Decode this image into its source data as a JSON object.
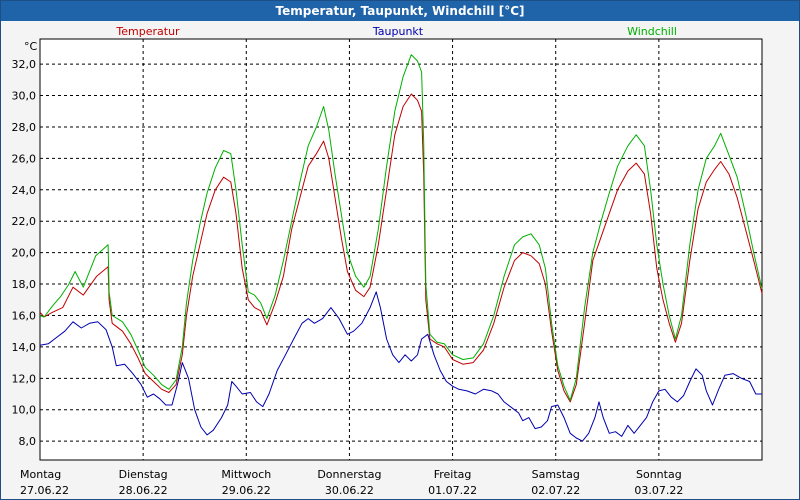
{
  "window": {
    "title": "Temperatur, Taupunkt, Windchill [°C]"
  },
  "chart_data": {
    "type": "line",
    "unit": "°C",
    "ylim": [
      6.8,
      33.6
    ],
    "yticks": [
      "8,0",
      "10,0",
      "12,0",
      "14,0",
      "16,0",
      "18,0",
      "20,0",
      "22,0",
      "24,0",
      "26,0",
      "28,0",
      "30,0",
      "32,0"
    ],
    "ytick_values": [
      8,
      10,
      12,
      14,
      16,
      18,
      20,
      22,
      24,
      26,
      28,
      30,
      32
    ],
    "xlim": [
      0,
      7
    ],
    "days": [
      {
        "weekday": "Montag",
        "date": "27.06.22"
      },
      {
        "weekday": "Dienstag",
        "date": "28.06.22"
      },
      {
        "weekday": "Mittwoch",
        "date": "29.06.22"
      },
      {
        "weekday": "Donnerstag",
        "date": "30.06.22"
      },
      {
        "weekday": "Freitag",
        "date": "01.07.22"
      },
      {
        "weekday": "Samstag",
        "date": "02.07.22"
      },
      {
        "weekday": "Sonntag",
        "date": "03.07.22"
      }
    ],
    "grid": true,
    "series": [
      {
        "name": "Temperatur",
        "color": "#c00000",
        "points": [
          [
            0,
            16.2
          ],
          [
            0.04,
            15.9
          ],
          [
            0.12,
            16.2
          ],
          [
            0.22,
            16.5
          ],
          [
            0.32,
            17.8
          ],
          [
            0.42,
            17.3
          ],
          [
            0.55,
            18.5
          ],
          [
            0.66,
            19.1
          ],
          [
            0.67,
            17.0
          ],
          [
            0.7,
            15.5
          ],
          [
            0.8,
            15.0
          ],
          [
            0.88,
            14.2
          ],
          [
            0.95,
            13.3
          ],
          [
            1.02,
            12.3
          ],
          [
            1.1,
            11.8
          ],
          [
            1.18,
            11.3
          ],
          [
            1.25,
            11.1
          ],
          [
            1.32,
            11.6
          ],
          [
            1.38,
            13.5
          ],
          [
            1.42,
            16.0
          ],
          [
            1.48,
            18.5
          ],
          [
            1.55,
            20.5
          ],
          [
            1.62,
            22.5
          ],
          [
            1.7,
            24.0
          ],
          [
            1.78,
            24.8
          ],
          [
            1.85,
            24.5
          ],
          [
            1.9,
            22.5
          ],
          [
            1.96,
            19.0
          ],
          [
            2.02,
            17.0
          ],
          [
            2.08,
            16.5
          ],
          [
            2.14,
            16.3
          ],
          [
            2.2,
            15.4
          ],
          [
            2.28,
            16.8
          ],
          [
            2.36,
            18.5
          ],
          [
            2.44,
            21.5
          ],
          [
            2.52,
            23.5
          ],
          [
            2.6,
            25.5
          ],
          [
            2.68,
            26.3
          ],
          [
            2.75,
            27.1
          ],
          [
            2.8,
            26.0
          ],
          [
            2.86,
            23.5
          ],
          [
            2.92,
            21.0
          ],
          [
            2.98,
            18.8
          ],
          [
            3.06,
            17.6
          ],
          [
            3.14,
            17.2
          ],
          [
            3.2,
            17.8
          ],
          [
            3.28,
            20.5
          ],
          [
            3.36,
            24.0
          ],
          [
            3.44,
            27.5
          ],
          [
            3.52,
            29.3
          ],
          [
            3.6,
            30.1
          ],
          [
            3.66,
            29.7
          ],
          [
            3.7,
            29.0
          ],
          [
            3.72,
            25.0
          ],
          [
            3.74,
            17.0
          ],
          [
            3.78,
            14.5
          ],
          [
            3.85,
            14.2
          ],
          [
            3.92,
            14.0
          ],
          [
            4.0,
            13.2
          ],
          [
            4.1,
            12.9
          ],
          [
            4.2,
            13.0
          ],
          [
            4.3,
            13.8
          ],
          [
            4.4,
            15.5
          ],
          [
            4.5,
            17.8
          ],
          [
            4.6,
            19.5
          ],
          [
            4.68,
            20.0
          ],
          [
            4.76,
            19.8
          ],
          [
            4.84,
            19.3
          ],
          [
            4.9,
            18.0
          ],
          [
            4.96,
            15.0
          ],
          [
            5.02,
            12.5
          ],
          [
            5.08,
            11.2
          ],
          [
            5.14,
            10.5
          ],
          [
            5.2,
            11.6
          ],
          [
            5.28,
            15.5
          ],
          [
            5.36,
            19.5
          ],
          [
            5.44,
            21.0
          ],
          [
            5.52,
            22.5
          ],
          [
            5.6,
            24.0
          ],
          [
            5.7,
            25.2
          ],
          [
            5.78,
            25.7
          ],
          [
            5.86,
            25.0
          ],
          [
            5.92,
            22.5
          ],
          [
            5.98,
            19.0
          ],
          [
            6.04,
            17.0
          ],
          [
            6.1,
            15.5
          ],
          [
            6.16,
            14.3
          ],
          [
            6.22,
            15.5
          ],
          [
            6.3,
            19.5
          ],
          [
            6.38,
            22.8
          ],
          [
            6.46,
            24.5
          ],
          [
            6.54,
            25.3
          ],
          [
            6.6,
            25.8
          ],
          [
            6.68,
            25.0
          ],
          [
            6.76,
            23.5
          ],
          [
            6.84,
            21.5
          ],
          [
            6.92,
            19.5
          ],
          [
            7.0,
            17.4
          ]
        ]
      },
      {
        "name": "Taupunkt",
        "color": "#0000b0",
        "points": [
          [
            0,
            14.1
          ],
          [
            0.08,
            14.2
          ],
          [
            0.16,
            14.6
          ],
          [
            0.24,
            15.0
          ],
          [
            0.32,
            15.6
          ],
          [
            0.4,
            15.2
          ],
          [
            0.48,
            15.5
          ],
          [
            0.56,
            15.6
          ],
          [
            0.64,
            15.1
          ],
          [
            0.7,
            14.0
          ],
          [
            0.74,
            12.8
          ],
          [
            0.82,
            12.9
          ],
          [
            0.9,
            12.3
          ],
          [
            0.98,
            11.6
          ],
          [
            1.04,
            10.8
          ],
          [
            1.1,
            11.0
          ],
          [
            1.16,
            10.7
          ],
          [
            1.22,
            10.3
          ],
          [
            1.28,
            10.3
          ],
          [
            1.34,
            11.8
          ],
          [
            1.38,
            13.0
          ],
          [
            1.44,
            12.0
          ],
          [
            1.5,
            10.0
          ],
          [
            1.56,
            8.9
          ],
          [
            1.62,
            8.4
          ],
          [
            1.68,
            8.7
          ],
          [
            1.76,
            9.5
          ],
          [
            1.82,
            10.3
          ],
          [
            1.86,
            11.8
          ],
          [
            1.9,
            11.5
          ],
          [
            1.96,
            11.0
          ],
          [
            2.04,
            11.1
          ],
          [
            2.1,
            10.5
          ],
          [
            2.16,
            10.2
          ],
          [
            2.22,
            11.0
          ],
          [
            2.3,
            12.5
          ],
          [
            2.38,
            13.5
          ],
          [
            2.46,
            14.5
          ],
          [
            2.54,
            15.5
          ],
          [
            2.6,
            15.8
          ],
          [
            2.66,
            15.5
          ],
          [
            2.74,
            15.8
          ],
          [
            2.82,
            16.5
          ],
          [
            2.9,
            15.8
          ],
          [
            2.98,
            14.8
          ],
          [
            3.04,
            15.0
          ],
          [
            3.12,
            15.5
          ],
          [
            3.2,
            16.5
          ],
          [
            3.26,
            17.5
          ],
          [
            3.3,
            16.5
          ],
          [
            3.36,
            14.5
          ],
          [
            3.42,
            13.5
          ],
          [
            3.48,
            13.0
          ],
          [
            3.54,
            13.5
          ],
          [
            3.6,
            13.1
          ],
          [
            3.66,
            13.5
          ],
          [
            3.7,
            14.5
          ],
          [
            3.76,
            14.8
          ],
          [
            3.82,
            13.5
          ],
          [
            3.88,
            12.5
          ],
          [
            3.94,
            11.8
          ],
          [
            4.0,
            11.5
          ],
          [
            4.06,
            11.3
          ],
          [
            4.14,
            11.2
          ],
          [
            4.22,
            11.0
          ],
          [
            4.3,
            11.3
          ],
          [
            4.38,
            11.2
          ],
          [
            4.44,
            11.0
          ],
          [
            4.5,
            10.5
          ],
          [
            4.58,
            10.1
          ],
          [
            4.64,
            9.8
          ],
          [
            4.68,
            9.3
          ],
          [
            4.74,
            9.5
          ],
          [
            4.8,
            8.8
          ],
          [
            4.86,
            8.9
          ],
          [
            4.92,
            9.3
          ],
          [
            4.96,
            10.2
          ],
          [
            5.02,
            10.3
          ],
          [
            5.08,
            9.5
          ],
          [
            5.14,
            8.5
          ],
          [
            5.2,
            8.2
          ],
          [
            5.26,
            8.0
          ],
          [
            5.32,
            8.5
          ],
          [
            5.38,
            9.5
          ],
          [
            5.42,
            10.5
          ],
          [
            5.46,
            9.5
          ],
          [
            5.52,
            8.5
          ],
          [
            5.58,
            8.6
          ],
          [
            5.64,
            8.3
          ],
          [
            5.7,
            9.0
          ],
          [
            5.76,
            8.5
          ],
          [
            5.82,
            9.0
          ],
          [
            5.88,
            9.5
          ],
          [
            5.94,
            10.5
          ],
          [
            6.0,
            11.2
          ],
          [
            6.06,
            11.3
          ],
          [
            6.12,
            10.8
          ],
          [
            6.18,
            10.5
          ],
          [
            6.24,
            10.9
          ],
          [
            6.3,
            11.8
          ],
          [
            6.36,
            12.6
          ],
          [
            6.42,
            12.2
          ],
          [
            6.46,
            11.2
          ],
          [
            6.52,
            10.3
          ],
          [
            6.58,
            11.3
          ],
          [
            6.64,
            12.2
          ],
          [
            6.72,
            12.3
          ],
          [
            6.8,
            12.0
          ],
          [
            6.88,
            11.8
          ],
          [
            6.94,
            11.0
          ],
          [
            7.0,
            11.0
          ]
        ]
      },
      {
        "name": "Windchill",
        "color": "#00b000",
        "points": [
          [
            0,
            16.0
          ],
          [
            0.04,
            15.9
          ],
          [
            0.12,
            16.6
          ],
          [
            0.2,
            17.2
          ],
          [
            0.28,
            18.0
          ],
          [
            0.34,
            18.8
          ],
          [
            0.42,
            17.8
          ],
          [
            0.54,
            19.8
          ],
          [
            0.66,
            20.5
          ],
          [
            0.67,
            17.5
          ],
          [
            0.7,
            16.0
          ],
          [
            0.8,
            15.6
          ],
          [
            0.88,
            14.8
          ],
          [
            0.95,
            13.8
          ],
          [
            1.02,
            12.7
          ],
          [
            1.1,
            12.2
          ],
          [
            1.18,
            11.6
          ],
          [
            1.25,
            11.3
          ],
          [
            1.32,
            11.9
          ],
          [
            1.38,
            14.0
          ],
          [
            1.42,
            16.8
          ],
          [
            1.48,
            19.5
          ],
          [
            1.55,
            21.8
          ],
          [
            1.62,
            23.8
          ],
          [
            1.7,
            25.4
          ],
          [
            1.78,
            26.5
          ],
          [
            1.85,
            26.3
          ],
          [
            1.9,
            24.0
          ],
          [
            1.96,
            20.5
          ],
          [
            2.02,
            17.5
          ],
          [
            2.08,
            17.3
          ],
          [
            2.14,
            16.8
          ],
          [
            2.2,
            15.8
          ],
          [
            2.28,
            17.3
          ],
          [
            2.36,
            19.5
          ],
          [
            2.44,
            22.0
          ],
          [
            2.52,
            24.5
          ],
          [
            2.6,
            26.8
          ],
          [
            2.68,
            28.0
          ],
          [
            2.75,
            29.3
          ],
          [
            2.8,
            27.8
          ],
          [
            2.86,
            25.0
          ],
          [
            2.92,
            22.5
          ],
          [
            2.98,
            20.0
          ],
          [
            3.06,
            18.5
          ],
          [
            3.14,
            17.8
          ],
          [
            3.2,
            18.5
          ],
          [
            3.28,
            21.5
          ],
          [
            3.36,
            25.5
          ],
          [
            3.44,
            29.0
          ],
          [
            3.52,
            31.2
          ],
          [
            3.6,
            32.6
          ],
          [
            3.66,
            32.2
          ],
          [
            3.7,
            31.5
          ],
          [
            3.72,
            27.0
          ],
          [
            3.74,
            18.0
          ],
          [
            3.78,
            14.8
          ],
          [
            3.85,
            14.3
          ],
          [
            3.92,
            14.2
          ],
          [
            4.0,
            13.5
          ],
          [
            4.1,
            13.2
          ],
          [
            4.2,
            13.3
          ],
          [
            4.3,
            14.2
          ],
          [
            4.4,
            16.0
          ],
          [
            4.5,
            18.5
          ],
          [
            4.6,
            20.5
          ],
          [
            4.68,
            21.0
          ],
          [
            4.76,
            21.2
          ],
          [
            4.84,
            20.5
          ],
          [
            4.9,
            19.0
          ],
          [
            4.96,
            15.5
          ],
          [
            5.02,
            12.8
          ],
          [
            5.08,
            11.5
          ],
          [
            5.14,
            10.6
          ],
          [
            5.2,
            12.0
          ],
          [
            5.28,
            16.5
          ],
          [
            5.36,
            20.0
          ],
          [
            5.44,
            22.0
          ],
          [
            5.52,
            23.8
          ],
          [
            5.6,
            25.5
          ],
          [
            5.7,
            26.8
          ],
          [
            5.78,
            27.5
          ],
          [
            5.86,
            26.8
          ],
          [
            5.92,
            24.0
          ],
          [
            5.98,
            20.5
          ],
          [
            6.04,
            18.0
          ],
          [
            6.1,
            16.0
          ],
          [
            6.16,
            14.5
          ],
          [
            6.22,
            16.0
          ],
          [
            6.3,
            20.5
          ],
          [
            6.38,
            24.0
          ],
          [
            6.46,
            26.0
          ],
          [
            6.54,
            26.8
          ],
          [
            6.6,
            27.6
          ],
          [
            6.68,
            26.2
          ],
          [
            6.76,
            24.8
          ],
          [
            6.84,
            22.5
          ],
          [
            6.92,
            20.0
          ],
          [
            7.0,
            17.7
          ]
        ]
      }
    ]
  }
}
